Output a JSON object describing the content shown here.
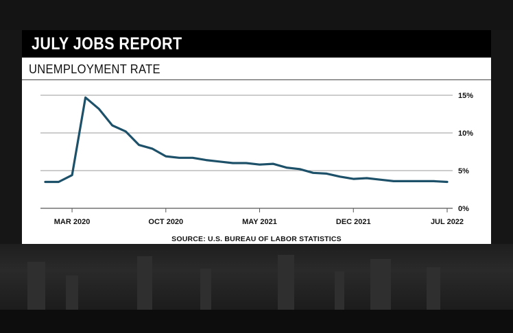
{
  "header": {
    "title": "JULY JOBS REPORT",
    "subtitle": "UNEMPLOYMENT RATE",
    "source": "SOURCE: U.S. BUREAU OF LABOR STATISTICS"
  },
  "colors": {
    "line": "#1d5069",
    "title_bar": "#000000",
    "card": "#ffffff",
    "background": "#161616"
  },
  "chart_data": {
    "type": "line",
    "title": "UNEMPLOYMENT RATE",
    "xlabel": "",
    "ylabel": "",
    "x": [
      "Jan 2020",
      "Feb 2020",
      "Mar 2020",
      "Apr 2020",
      "May 2020",
      "Jun 2020",
      "Jul 2020",
      "Aug 2020",
      "Sep 2020",
      "Oct 2020",
      "Nov 2020",
      "Dec 2020",
      "Jan 2021",
      "Feb 2021",
      "Mar 2021",
      "Apr 2021",
      "May 2021",
      "Jun 2021",
      "Jul 2021",
      "Aug 2021",
      "Sep 2021",
      "Oct 2021",
      "Nov 2021",
      "Dec 2021",
      "Jan 2022",
      "Feb 2022",
      "Mar 2022",
      "Apr 2022",
      "May 2022",
      "Jun 2022",
      "Jul 2022"
    ],
    "series": [
      {
        "values": [
          3.5,
          3.5,
          4.4,
          14.7,
          13.2,
          11.0,
          10.2,
          8.4,
          7.9,
          6.9,
          6.7,
          6.7,
          6.4,
          6.2,
          6.0,
          6.0,
          5.8,
          5.9,
          5.4,
          5.2,
          4.7,
          4.6,
          4.2,
          3.9,
          4.0,
          3.8,
          3.6,
          3.6,
          3.6,
          3.6,
          3.5
        ]
      }
    ],
    "x_tick_labels": [
      "MAR 2020",
      "OCT 2020",
      "MAY 2021",
      "DEC 2021",
      "JUL 2022"
    ],
    "x_tick_indices": [
      2,
      9,
      16,
      23,
      30
    ],
    "y_tick_labels": [
      "0%",
      "5%",
      "10%",
      "15%"
    ],
    "y_tick_values": [
      0,
      5,
      10,
      15
    ],
    "ylim": [
      0,
      15
    ],
    "grid": true,
    "y_axis_position": "right",
    "legend": "none"
  }
}
